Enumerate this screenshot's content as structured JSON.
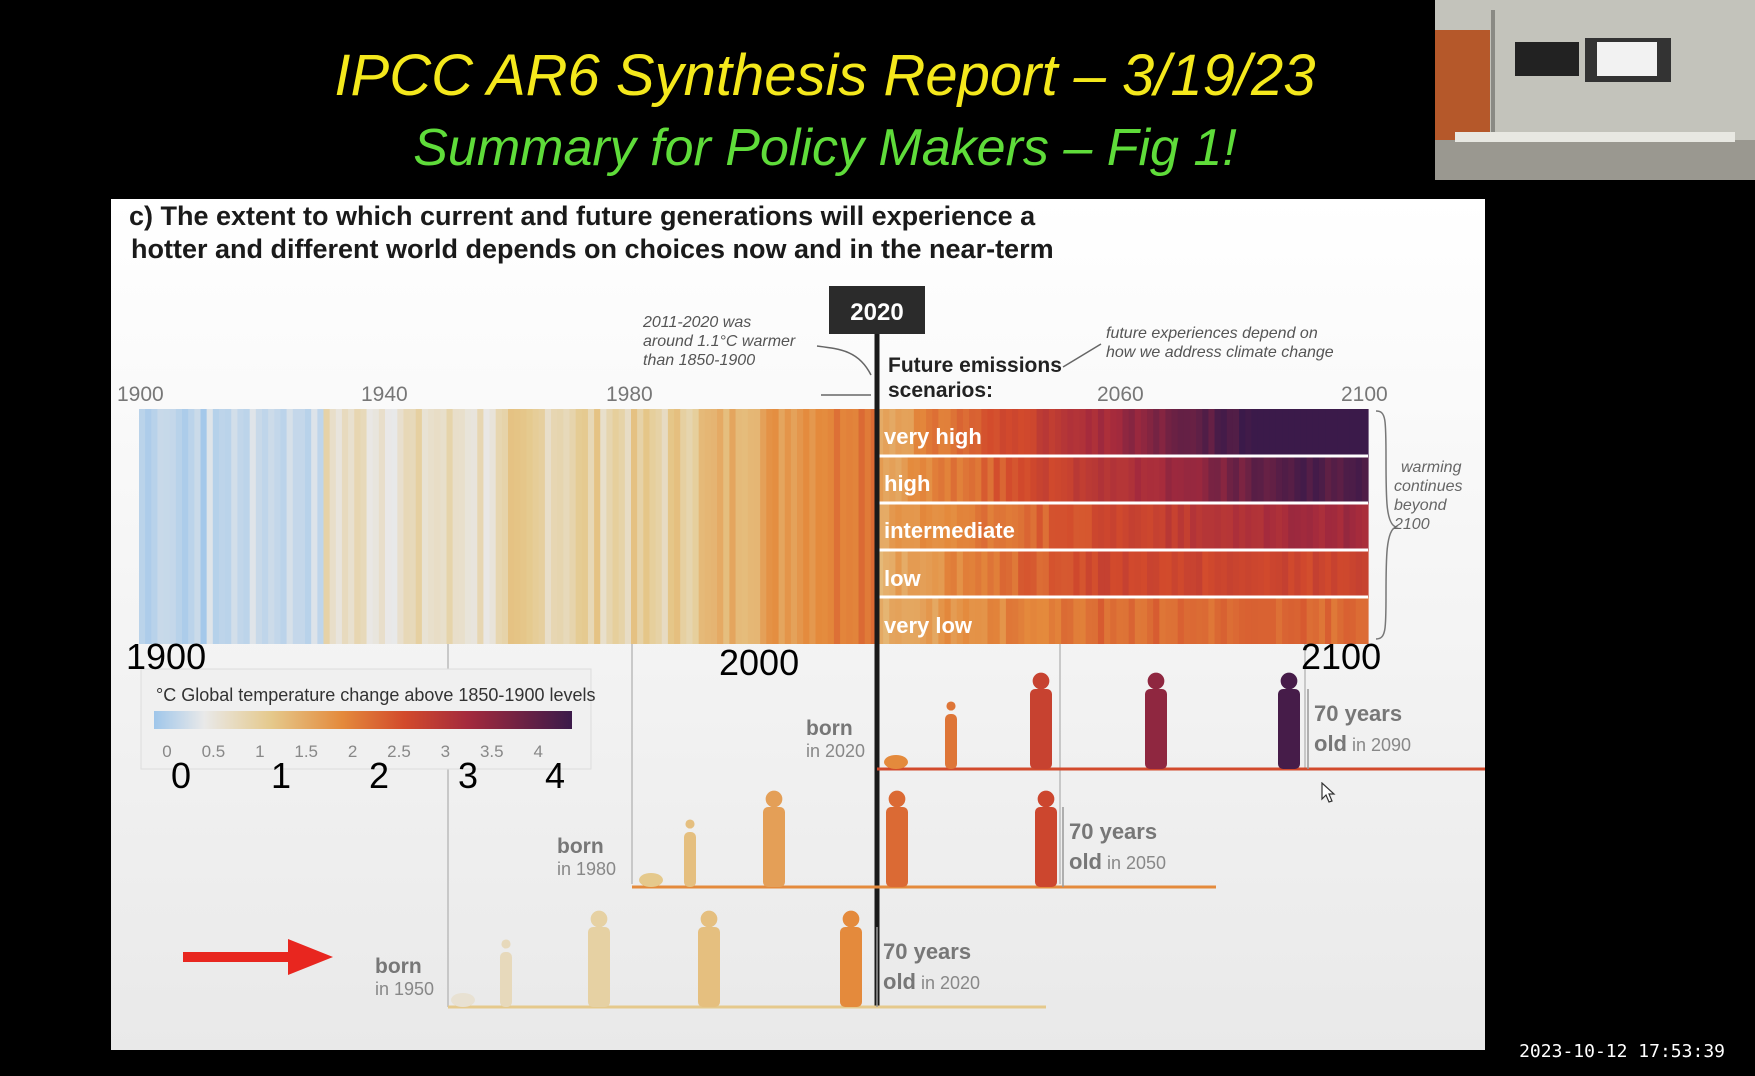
{
  "slide_title": "IPCC AR6 Synthesis Report – 3/19/23",
  "slide_subtitle": "Summary for Policy Makers – Fig 1!",
  "figure": {
    "heading_line1": "c) The extent to which current and future generations will experience a",
    "heading_line2": "hotter and different world depends on choices now and in the near-term",
    "year_badge": "2020",
    "note_left": [
      "2011-2020 was",
      "around 1.1°C warmer",
      "than 1850-1900"
    ],
    "note_right": [
      "future experiences depend on",
      "how we address climate change"
    ],
    "future_label": [
      "Future emissions",
      "scenarios:"
    ],
    "axis_years": [
      "1900",
      "1940",
      "1980",
      "2060",
      "2100"
    ],
    "scenarios": [
      "very high",
      "high",
      "intermediate",
      "low",
      "very low"
    ],
    "warming_note": [
      "warming",
      "continues",
      "beyond",
      "2100"
    ],
    "legend_title": "°C Global temperature change above 1850-1900 levels",
    "legend_ticks": [
      "0",
      "0.5",
      "1",
      "1.5",
      "2",
      "2.5",
      "3",
      "3.5",
      "4"
    ],
    "generations": [
      {
        "born_word": "born",
        "born_year": "in 2020",
        "age_word": "70 years",
        "old_word": "old",
        "old_year": "in 2090"
      },
      {
        "born_word": "born",
        "born_year": "in 1980",
        "age_word": "70 years",
        "old_word": "old",
        "old_year": "in 2050"
      },
      {
        "born_word": "born",
        "born_year": "in 1950",
        "age_word": "70 years",
        "old_word": "old",
        "old_year": "in 2020"
      }
    ],
    "overlay_years": [
      "1900",
      "2000",
      "2100"
    ],
    "overlay_scale": [
      "0",
      "1",
      "2",
      "3",
      "4"
    ]
  },
  "timestamp": "2023-10-12  17:53:39",
  "colors": {
    "title": "#f4e81c",
    "subtitle": "#5fdc3a",
    "arrow": "#e8261f"
  }
}
